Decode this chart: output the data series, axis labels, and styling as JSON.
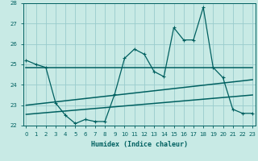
{
  "x": [
    0,
    1,
    2,
    3,
    4,
    5,
    6,
    7,
    8,
    9,
    10,
    11,
    12,
    13,
    14,
    15,
    16,
    17,
    18,
    19,
    20,
    21,
    22,
    23
  ],
  "y_main": [
    25.2,
    25.0,
    24.85,
    23.1,
    22.5,
    22.1,
    22.3,
    22.2,
    22.2,
    23.55,
    25.3,
    25.75,
    25.5,
    24.65,
    24.4,
    26.8,
    26.2,
    26.2,
    27.8,
    24.85,
    24.35,
    22.8,
    22.6,
    22.6
  ],
  "trend1_x": [
    0,
    23
  ],
  "trend1_y": [
    24.85,
    24.85
  ],
  "trend2_x": [
    0,
    23
  ],
  "trend2_y": [
    22.55,
    23.5
  ],
  "trend3_x": [
    0,
    23
  ],
  "trend3_y": [
    23.0,
    24.25
  ],
  "bg_color": "#c8eae5",
  "line_color": "#006060",
  "grid_color": "#99cccc",
  "xlabel": "Humidex (Indice chaleur)",
  "ylim": [
    22,
    28
  ],
  "xlim": [
    -0.3,
    23.3
  ],
  "yticks": [
    22,
    23,
    24,
    25,
    26,
    27,
    28
  ],
  "xticks": [
    0,
    1,
    2,
    3,
    4,
    5,
    6,
    7,
    8,
    9,
    10,
    11,
    12,
    13,
    14,
    15,
    16,
    17,
    18,
    19,
    20,
    21,
    22,
    23
  ],
  "xlabel_fontsize": 6.0,
  "tick_fontsize": 5.0
}
